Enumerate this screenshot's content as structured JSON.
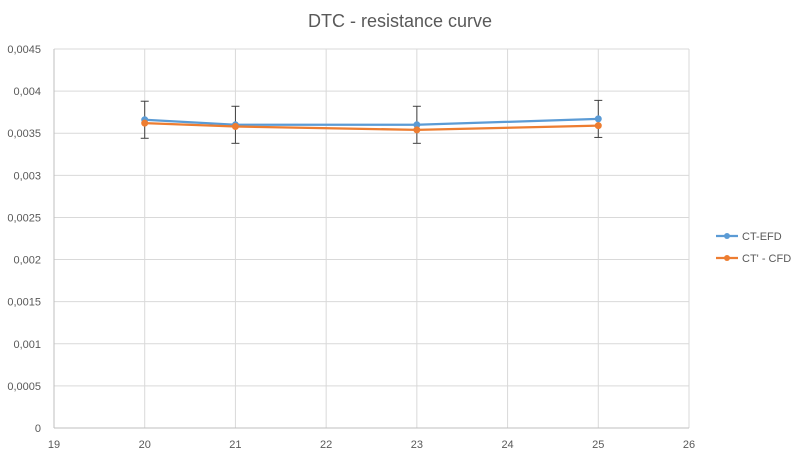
{
  "chart_data": {
    "type": "line",
    "title": "DTC - resistance curve",
    "xlabel": "",
    "ylabel": "",
    "xlim": [
      19,
      26
    ],
    "ylim": [
      0,
      0.0045
    ],
    "x_ticks": [
      "19",
      "20",
      "21",
      "22",
      "23",
      "24",
      "25",
      "26"
    ],
    "y_ticks": [
      "0",
      "0,0005",
      "0,001",
      "0,0015",
      "0,002",
      "0,0025",
      "0,003",
      "0,0035",
      "0,004",
      "0,0045"
    ],
    "grid": "vertical and horizontal",
    "legend_position": "right",
    "x": [
      20,
      21,
      23,
      25
    ],
    "series": [
      {
        "name": "CT-EFD",
        "color": "#5B9BD5",
        "values": [
          0.00366,
          0.0036,
          0.0036,
          0.00367
        ],
        "error": [
          0.00022,
          0.00022,
          0.00022,
          0.00022
        ]
      },
      {
        "name": "CT' - CFD",
        "color": "#ED7D31",
        "values": [
          0.00362,
          0.00358,
          0.00354,
          0.00359
        ]
      }
    ]
  }
}
